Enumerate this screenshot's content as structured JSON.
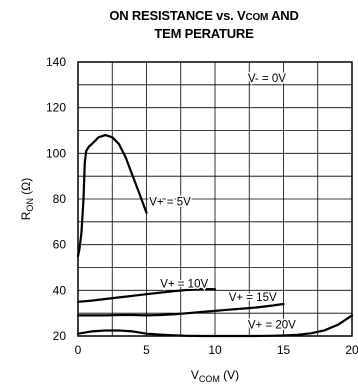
{
  "chart_data": {
    "type": "line",
    "title_line1_prefix": "ON RESISTANCE vs. V",
    "title_line1_sub": "COM",
    "title_line1_suffix": " AND",
    "title_line2": "TEM PERATURE",
    "ylabel_main": "R",
    "ylabel_sub": "ON",
    "ylabel_unit": " (Ω)",
    "xlabel_main": "V",
    "xlabel_sub": "COM",
    "xlabel_unit": " (V)",
    "xlim": [
      0,
      20
    ],
    "ylim": [
      20,
      140
    ],
    "x_ticks": [
      0,
      5,
      10,
      15,
      20
    ],
    "x_tick_labels": [
      "0",
      "5",
      "10",
      "15",
      "20"
    ],
    "y_ticks": [
      20,
      40,
      60,
      80,
      100,
      120,
      140
    ],
    "y_tick_labels": [
      "20",
      "40",
      "60",
      "80",
      "100",
      "120",
      "140"
    ],
    "grid": true,
    "annotations": [
      {
        "text": "V- = 0V",
        "x": 12.4,
        "y": 133
      },
      {
        "text": "V+ = 5V",
        "x": 5.2,
        "y": 79
      },
      {
        "text": "V+ = 10V",
        "x": 6.0,
        "y": 43
      },
      {
        "text": "V+ = 15V",
        "x": 11.0,
        "y": 37
      },
      {
        "text": "V+ = 20V",
        "x": 12.4,
        "y": 25
      }
    ],
    "series": [
      {
        "name": "V+ = 5V",
        "x": [
          0.0,
          0.1,
          0.25,
          0.4,
          0.5,
          0.6,
          0.8,
          1.0,
          1.5,
          2.0,
          2.5,
          3.0,
          3.5,
          4.0,
          4.5,
          5.0
        ],
        "y": [
          55,
          58,
          65,
          80,
          96,
          101,
          103,
          104,
          107,
          108,
          107,
          104,
          98,
          90,
          82,
          74
        ]
      },
      {
        "name": "V+ = 10V",
        "x": [
          0,
          1,
          2,
          3,
          4,
          5,
          6,
          7,
          8,
          9,
          10
        ],
        "y": [
          35,
          35.5,
          36.2,
          36.9,
          37.6,
          38.3,
          39.0,
          39.6,
          40.2,
          40.6,
          40.5
        ]
      },
      {
        "name": "V+ = 15V",
        "x": [
          0,
          1,
          2,
          3,
          4,
          5,
          6,
          7,
          8,
          9,
          10,
          11,
          12,
          13,
          14,
          15
        ],
        "y": [
          29,
          29,
          29,
          29.2,
          29.2,
          29,
          29.2,
          29.5,
          30.0,
          30.5,
          31.0,
          31.5,
          32.0,
          32.5,
          33.2,
          34
        ]
      },
      {
        "name": "V+ = 20V",
        "x": [
          0,
          1,
          2,
          3,
          4,
          5,
          6,
          7,
          8,
          9,
          10,
          11,
          12,
          13,
          14,
          15,
          16,
          17,
          18,
          19,
          20
        ],
        "y": [
          21,
          22,
          22.4,
          22.4,
          22,
          21,
          20.6,
          20.3,
          20.1,
          20,
          20,
          20,
          20,
          20,
          20.1,
          20.2,
          20.5,
          21.2,
          22.5,
          25,
          29
        ]
      }
    ]
  }
}
